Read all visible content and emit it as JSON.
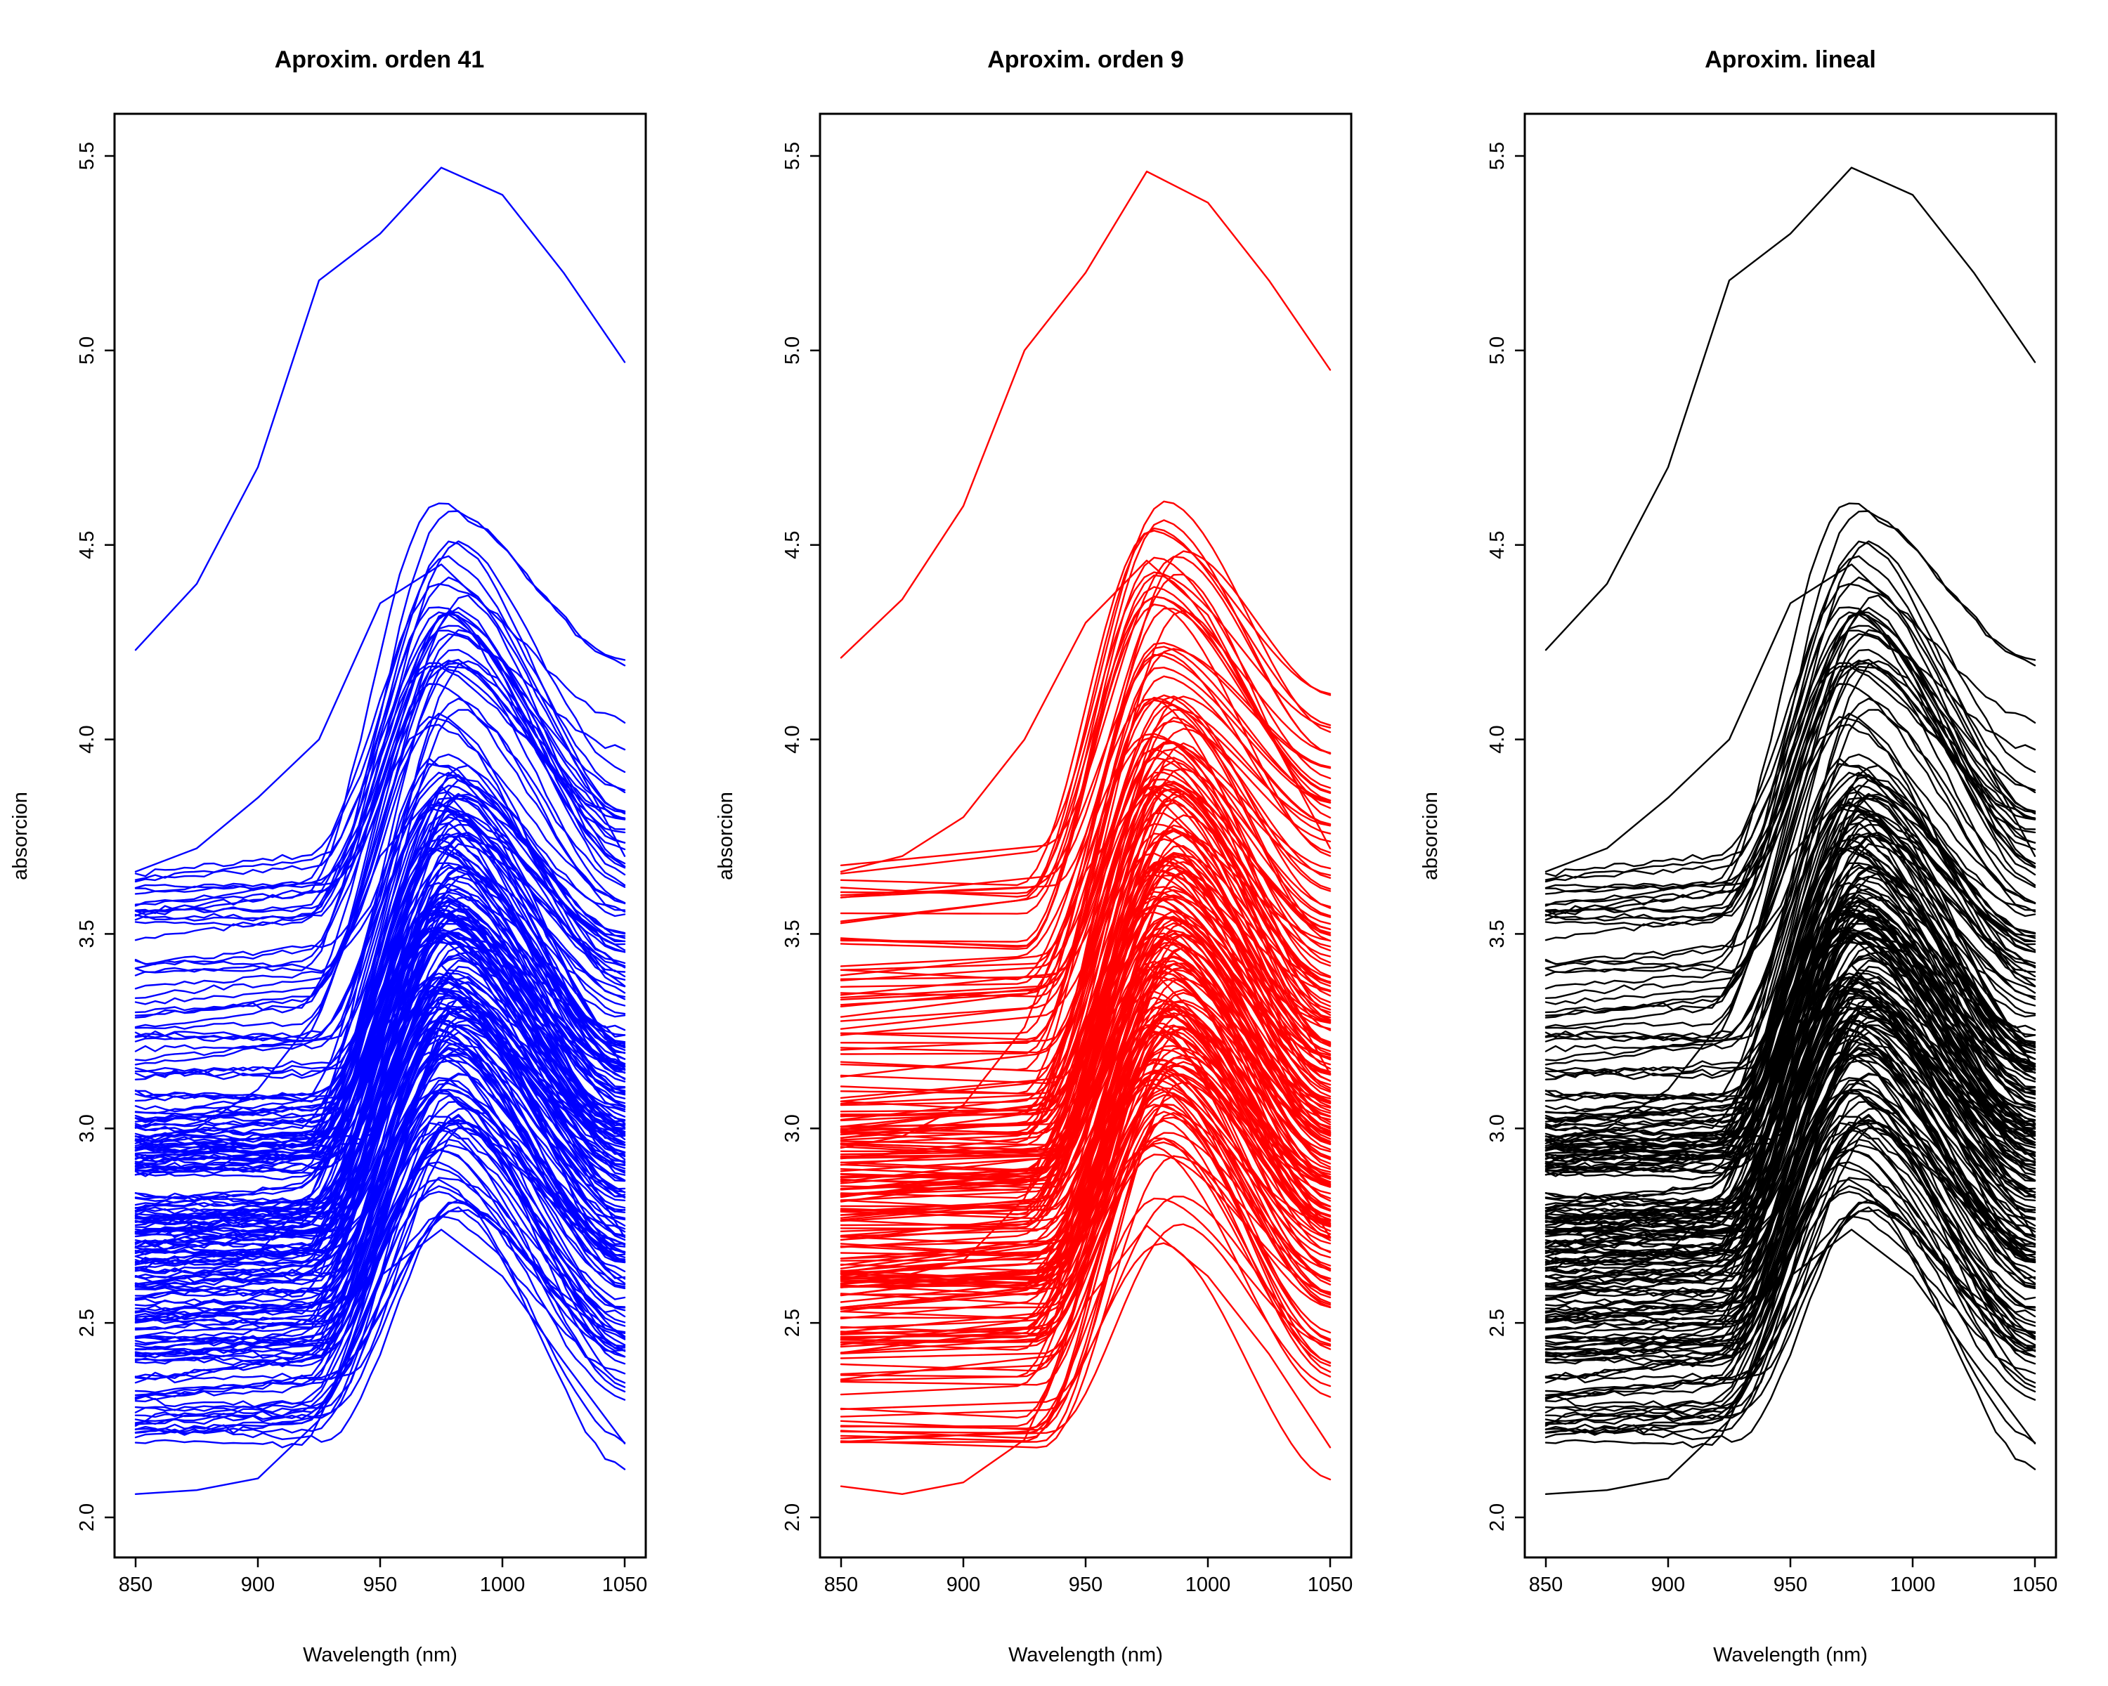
{
  "chart_data": [
    {
      "type": "line",
      "title": "Aproxim. orden 41",
      "xlabel": "Wavelength (nm)",
      "ylabel": "absorcion",
      "xlim": [
        850,
        1050
      ],
      "ylim": [
        2.0,
        5.5
      ],
      "xticks": [
        "850",
        "900",
        "950",
        "1000",
        "1050"
      ],
      "yticks": [
        "2.0",
        "2.5",
        "3.0",
        "3.5",
        "4.0",
        "4.5",
        "5.0",
        "5.5"
      ],
      "color": "#0000ff",
      "peak_x": 978,
      "n_curves": 215,
      "x": [
        850,
        875,
        900,
        925,
        950,
        975,
        1000,
        1025,
        1050
      ],
      "representative_series": [
        {
          "values": [
            2.06,
            2.07,
            2.1,
            2.25,
            2.62,
            2.74,
            2.62,
            2.4,
            2.19
          ]
        },
        {
          "values": [
            2.6,
            2.62,
            2.68,
            2.85,
            3.25,
            3.42,
            3.25,
            2.98,
            2.72
          ]
        },
        {
          "values": [
            2.95,
            3.0,
            3.1,
            3.3,
            3.7,
            3.88,
            3.7,
            3.42,
            3.15
          ]
        },
        {
          "values": [
            3.66,
            3.72,
            3.85,
            4.0,
            4.35,
            4.45,
            4.3,
            4.0,
            3.7
          ]
        },
        {
          "values": [
            4.23,
            4.4,
            4.7,
            5.18,
            5.3,
            5.47,
            5.4,
            5.2,
            4.97
          ]
        }
      ]
    },
    {
      "type": "line",
      "title": "Aproxim. orden 9",
      "xlabel": "Wavelength (nm)",
      "ylabel": "absorcion",
      "xlim": [
        850,
        1050
      ],
      "ylim": [
        2.0,
        5.5
      ],
      "xticks": [
        "850",
        "900",
        "950",
        "1000",
        "1050"
      ],
      "yticks": [
        "2.0",
        "2.5",
        "3.0",
        "3.5",
        "4.0",
        "4.5",
        "5.0",
        "5.5"
      ],
      "color": "#ff0000",
      "peak_x": 984,
      "n_curves": 215,
      "x": [
        850,
        875,
        900,
        925,
        950,
        975,
        1000,
        1025,
        1050
      ],
      "representative_series": [
        {
          "values": [
            2.08,
            2.06,
            2.09,
            2.2,
            2.55,
            2.75,
            2.62,
            2.42,
            2.18
          ]
        },
        {
          "values": [
            2.6,
            2.62,
            2.66,
            2.82,
            3.2,
            3.42,
            3.26,
            2.98,
            2.72
          ]
        },
        {
          "values": [
            2.95,
            2.98,
            3.06,
            3.26,
            3.66,
            3.88,
            3.72,
            3.42,
            3.14
          ]
        },
        {
          "values": [
            3.66,
            3.7,
            3.8,
            4.0,
            4.3,
            4.46,
            4.32,
            4.02,
            3.72
          ]
        },
        {
          "values": [
            4.21,
            4.36,
            4.6,
            5.0,
            5.2,
            5.46,
            5.38,
            5.18,
            4.95
          ]
        }
      ]
    },
    {
      "type": "line",
      "title": "Aproxim. lineal",
      "xlabel": "Wavelength (nm)",
      "ylabel": "absorcion",
      "xlim": [
        850,
        1050
      ],
      "ylim": [
        2.0,
        5.5
      ],
      "xticks": [
        "850",
        "900",
        "950",
        "1000",
        "1050"
      ],
      "yticks": [
        "2.0",
        "2.5",
        "3.0",
        "3.5",
        "4.0",
        "4.5",
        "5.0",
        "5.5"
      ],
      "color": "#000000",
      "peak_x": 978,
      "n_curves": 215,
      "x": [
        850,
        875,
        900,
        925,
        950,
        975,
        1000,
        1025,
        1050
      ],
      "representative_series": [
        {
          "values": [
            2.06,
            2.07,
            2.1,
            2.25,
            2.62,
            2.74,
            2.62,
            2.4,
            2.19
          ]
        },
        {
          "values": [
            2.6,
            2.62,
            2.68,
            2.85,
            3.25,
            3.42,
            3.25,
            2.98,
            2.72
          ]
        },
        {
          "values": [
            2.95,
            3.0,
            3.1,
            3.3,
            3.7,
            3.88,
            3.7,
            3.42,
            3.15
          ]
        },
        {
          "values": [
            3.66,
            3.72,
            3.85,
            4.0,
            4.35,
            4.45,
            4.3,
            4.0,
            3.7
          ]
        },
        {
          "values": [
            4.23,
            4.4,
            4.7,
            5.18,
            5.3,
            5.47,
            5.4,
            5.2,
            4.97
          ]
        }
      ]
    }
  ]
}
